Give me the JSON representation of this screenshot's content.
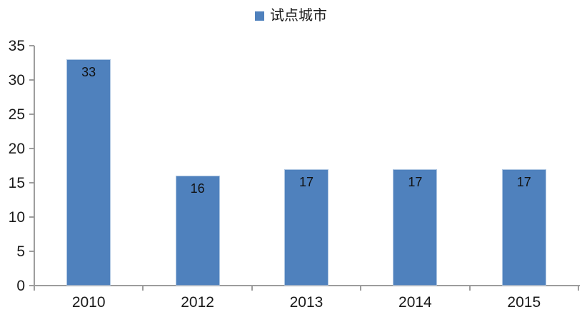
{
  "chart_data": {
    "type": "bar",
    "title": "",
    "legend": "试点城市",
    "categories": [
      "2010",
      "2012",
      "2013",
      "2014",
      "2015"
    ],
    "values": [
      33,
      16,
      17,
      17,
      17
    ],
    "xlabel": "",
    "ylabel": "",
    "ylim": [
      0,
      35
    ],
    "yticks": [
      0,
      5,
      10,
      15,
      20,
      25,
      30,
      35
    ],
    "grid": "off",
    "legend_position": "top-center",
    "bar_color": "#4F81BD",
    "bar_border_color": "#AEC6E2",
    "axis_color": "#9D9D9D",
    "text_color": "#1A1A1A",
    "value_label_position": "inside-top"
  }
}
